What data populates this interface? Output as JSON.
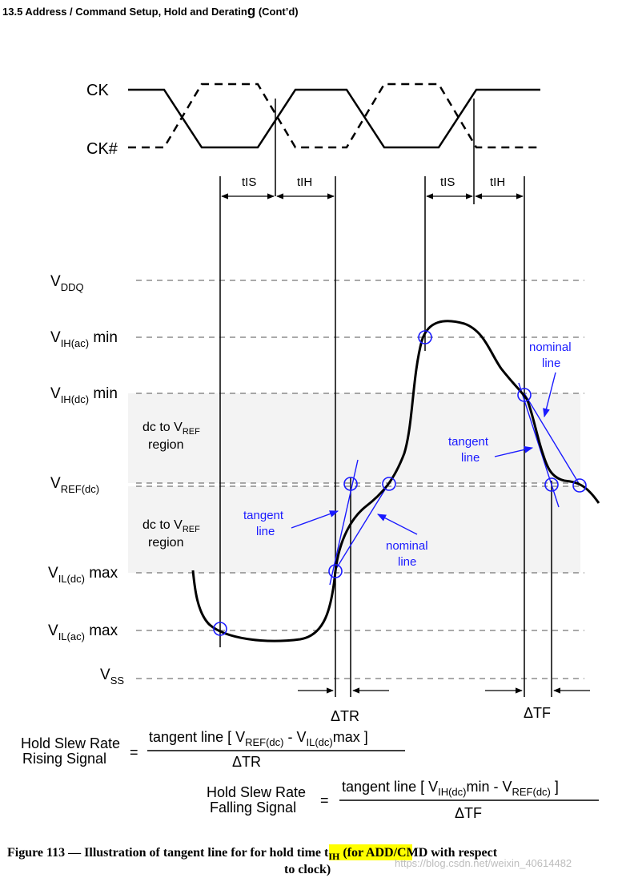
{
  "header": {
    "section_title": "13.5  Address / Command Setup, Hold and Deratin",
    "section_title_last": "g",
    "section_title_tail": " (Cont’d)"
  },
  "clock": {
    "ck_label": "CK",
    "ckb_label": "CK#"
  },
  "timing": {
    "tis_1": "tIS",
    "tih_1": "tIH",
    "tis_2": "tIS",
    "tih_2": "tIH"
  },
  "levels": {
    "vddq": {
      "main": "V",
      "sub": "DDQ",
      "post": ""
    },
    "vih_ac": {
      "main": "V",
      "sub": "IH(ac)",
      "post": " min"
    },
    "vih_dc": {
      "main": "V",
      "sub": "IH(dc)",
      "post": " min"
    },
    "vref": {
      "main": "V",
      "sub": "REF(dc)",
      "post": ""
    },
    "vil_dc": {
      "main": "V",
      "sub": "IL(dc)",
      "post": " max"
    },
    "vil_ac": {
      "main": "V",
      "sub": "IL(ac)",
      "post": " max"
    },
    "vss": {
      "main": "V",
      "sub": "SS",
      "post": ""
    }
  },
  "regions": {
    "upper": {
      "line1_pre": "dc to V",
      "line1_sub": "REF",
      "line2": "region"
    },
    "lower": {
      "line1_pre": "dc to V",
      "line1_sub": "REF",
      "line2": "region"
    }
  },
  "annotations": {
    "tangent_left": {
      "line1": "tangent",
      "line2": "line"
    },
    "nominal_left": {
      "line1": "nominal",
      "line2": "line"
    },
    "nominal_right": {
      "line1": "nominal",
      "line2": "line"
    },
    "tangent_right": {
      "line1": "tangent",
      "line2": "line"
    },
    "delta_tr": "ΔTR",
    "delta_tf": "ΔTF"
  },
  "formulas": {
    "rising": {
      "label_line1": "Hold Slew Rate",
      "label_line2": "Rising Signal",
      "equals": "=",
      "num_a": "tangent line [ V",
      "num_sub1": "REF(dc)",
      "num_b": " - V",
      "num_sub2": "IL(dc)",
      "num_c": "max ]",
      "denominator": "ΔTR"
    },
    "falling": {
      "label_line1": "Hold Slew Rate",
      "label_line2": "Falling Signal",
      "equals": "=",
      "num_a": "tangent line [ V",
      "num_sub1": "IH(dc)",
      "num_b": "min - V",
      "num_sub2": "REF(dc)",
      "num_c": " ]",
      "denominator": "ΔTF"
    }
  },
  "caption": {
    "part1": "Figure 113 — Illustration of tangent line for for ",
    "highlight": "hold time t",
    "highlight_sub": "IH",
    "part2": " (for ADD/CMD with respect",
    "line2": "to clock)"
  },
  "watermark": "https://blog.csdn.net/weixin_40614482",
  "colors": {
    "annotation_blue": "#1a1aff",
    "region_fill": "#f3f3f3",
    "highlight": "#ffff00"
  }
}
